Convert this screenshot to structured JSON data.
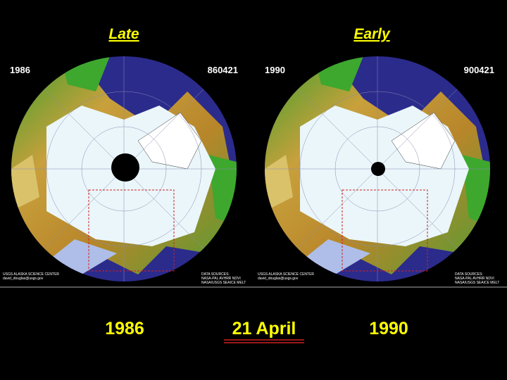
{
  "panels": [
    {
      "heading": "Late",
      "year": "1986",
      "date_code": "860421",
      "credit": [
        "USGS ALASKA SCIENCE CENTER",
        "david_douglas@usgs.gov"
      ],
      "sources": [
        "DATA SOURCES:",
        "NASA-PAL AVHRR NDVI",
        "NASA/USGS SEAICE MELT"
      ]
    },
    {
      "heading": "Early",
      "year": "1990",
      "date_code": "900421",
      "credit": [
        "USGS ALASKA SCIENCE CENTER",
        "david_douglas@usgs.gov"
      ],
      "sources": [
        "DATA SOURCES:",
        "NASA-PAL AVHRR NDVI",
        "NASA/USGS SEAICE MELT"
      ]
    }
  ],
  "footer": {
    "left": "1986",
    "center": "21 April",
    "right": "1990"
  }
}
